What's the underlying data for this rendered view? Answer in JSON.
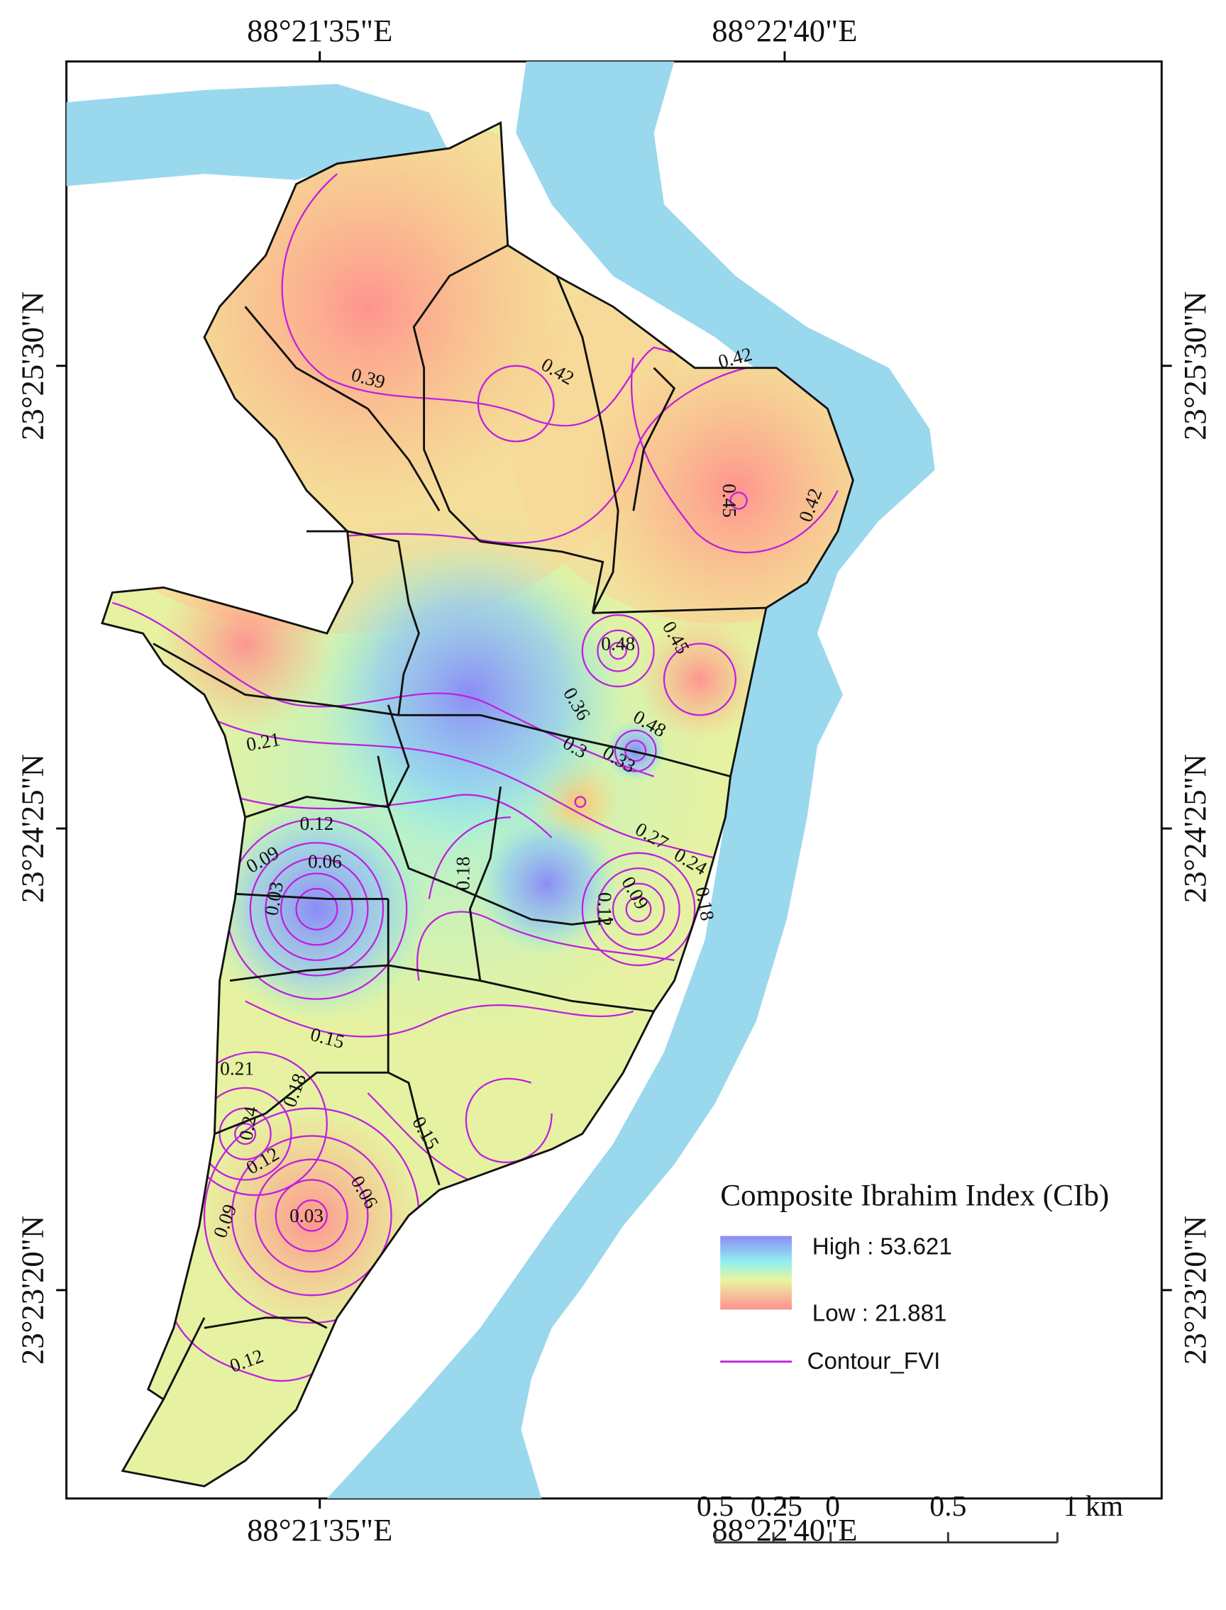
{
  "map": {
    "top_labels": [
      "88°21'35\"E",
      "88°22'40\"E"
    ],
    "bottom_labels": [
      "88°21'35\"E",
      "88°22'40\"E"
    ],
    "left_labels": [
      "23°25'30\"N",
      "23°24'25\"N",
      "23°23'20\"N"
    ],
    "right_labels": [
      "23°25'30\"N",
      "23°24'25\"N",
      "23°23'20\"N"
    ],
    "contour_labels": [
      "0.39",
      "0.42",
      "0.42",
      "0.45",
      "0.42",
      "0.48",
      "0.45",
      "0.36",
      "0.48",
      "0.3",
      "0.33",
      "0.27",
      "0.24",
      "0.18",
      "0.09",
      "0.12",
      "0.18",
      "0.21",
      "0.12",
      "0.09",
      "0.06",
      "0.03",
      "0.15",
      "0.21",
      "0.18",
      "0.24",
      "0.12",
      "0.15",
      "0.03",
      "0.06",
      "0.09",
      "0.12"
    ],
    "legend": {
      "title": "Composite Ibrahim Index (CIb)",
      "high": "High : 53.621",
      "low": "Low : 21.881",
      "contour": "Contour_FVI"
    },
    "scale_bar": {
      "labels": [
        "0.5",
        "0.25",
        "0",
        "0.5",
        "1 km"
      ]
    }
  }
}
